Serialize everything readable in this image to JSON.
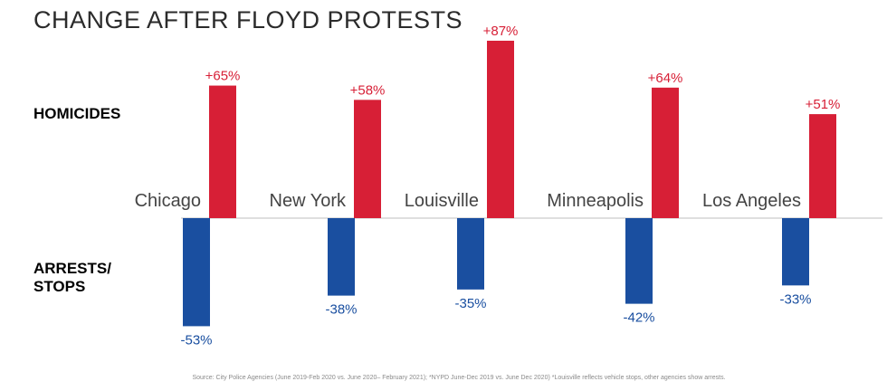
{
  "chart_data": {
    "type": "bar",
    "title": "CHANGE AFTER FLOYD PROTESTS",
    "categories": [
      "Chicago",
      "New York",
      "Louisville",
      "Minneapolis",
      "Los Angeles"
    ],
    "series": [
      {
        "name": "HOMICIDES",
        "values": [
          65,
          58,
          87,
          64,
          51
        ],
        "labels": [
          "+65%",
          "+58%",
          "+87%",
          "+64%",
          "+51%"
        ]
      },
      {
        "name": "ARRESTS/ STOPS",
        "values": [
          -53,
          -38,
          -35,
          -42,
          -33
        ],
        "labels": [
          "-53%",
          "-38%",
          "-35%",
          "-42%",
          "-33%"
        ]
      }
    ],
    "row_labels": {
      "top": "HOMICIDES",
      "bottom_line1": "ARRESTS/",
      "bottom_line2": "STOPS"
    },
    "colors": {
      "positive": "#d71f36",
      "negative": "#1a4fa0",
      "baseline": "#bfbfbf"
    },
    "source": "Source: City Police Agencies (June 2019-Feb 2020 vs. June 2020– February 2021); *NYPD June-Dec 2019 vs. June Dec 2020) *Louisville reflects vehicle stops, other agencies show arrests."
  }
}
